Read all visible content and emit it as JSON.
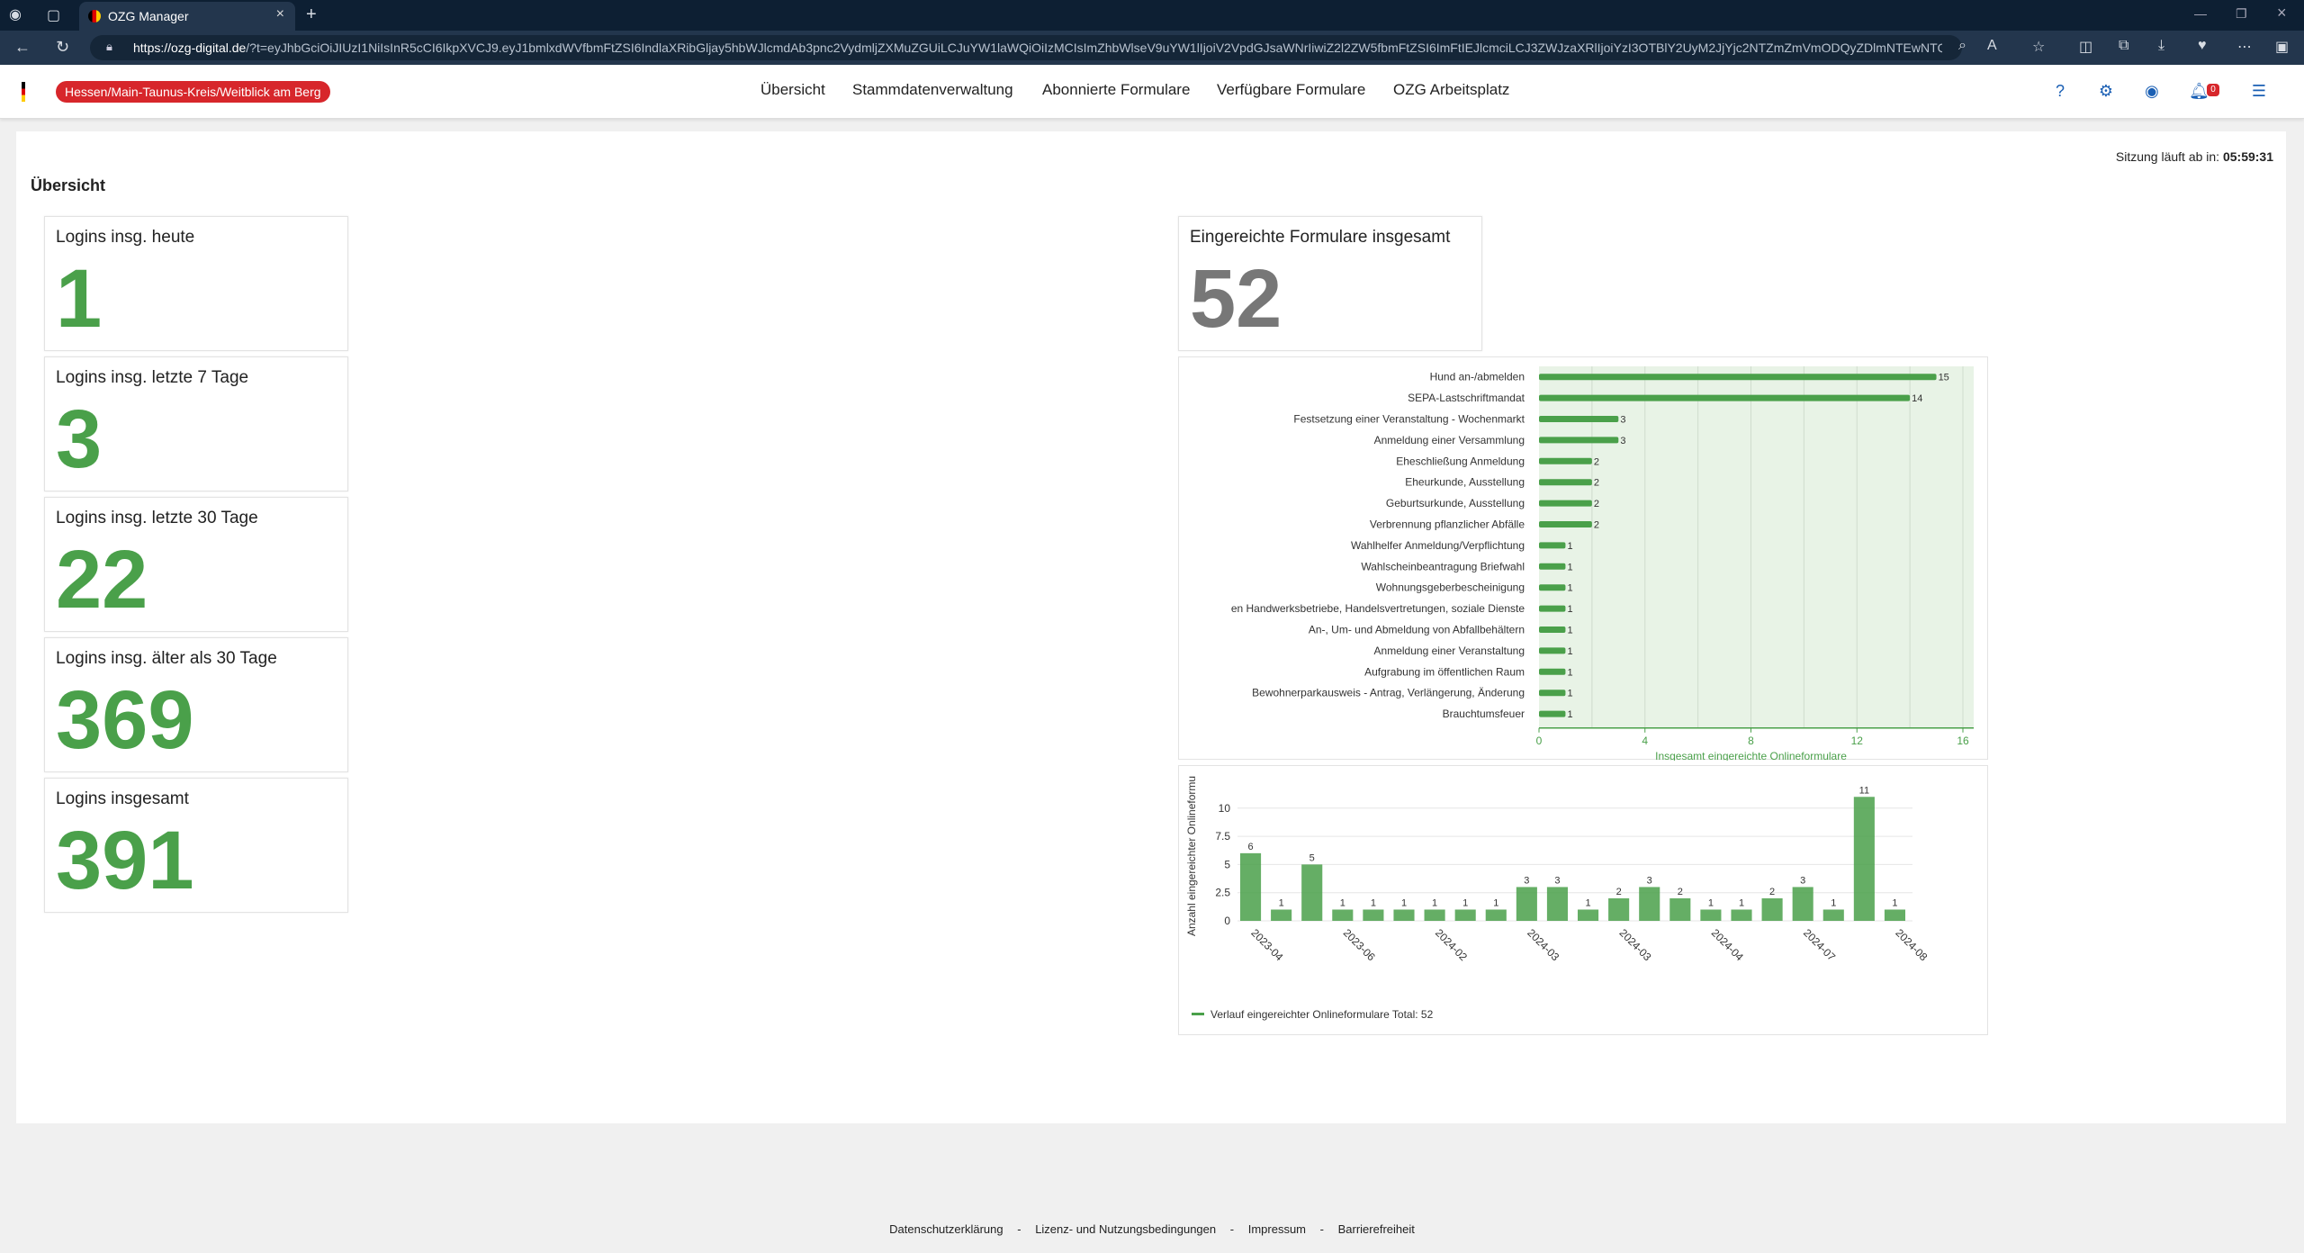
{
  "browser": {
    "tab_title": "OZG Manager",
    "url_domain": "https://ozg-digital.de",
    "url_rest": "/?t=eyJhbGciOiJIUzI1NiIsInR5cCI6IkpXVCJ9.eyJ1bmlxdWVfbmFtZSI6IndlaXRibGljay5hbWJlcmdAb3pnc2VydmljZXMuZGUiLCJuYW1laWQiOiIzMCIsImZhbWlseV9uYW1lIjoiV2VpdGJsaWNrIiwiZ2l2ZW5fbmFtZSI6ImFtIEJlcmciLCJ3ZWJzaXRlIjoiYzI3OTBlY2UyM2JjYjc2NTZmZmVmODQyZDlmNTEwNTQiLCJDb21t..."
  },
  "header": {
    "region": "Hessen/Main-Taunus-Kreis/Weitblick am Berg",
    "nav": [
      "Übersicht",
      "Stammdatenverwaltung",
      "Abonnierte Formulare",
      "Verfügbare Formulare",
      "OZG Arbeitsplatz"
    ],
    "notifications": "0"
  },
  "main": {
    "session_label": "Sitzung läuft ab in:",
    "session_time": "05:59:31",
    "title": "Übersicht",
    "cards": [
      {
        "label": "Logins insg. heute",
        "value": "1"
      },
      {
        "label": "Logins insg. letzte 7 Tage",
        "value": "3"
      },
      {
        "label": "Logins insg. letzte 30 Tage",
        "value": "22"
      },
      {
        "label": "Logins insg. älter als 30 Tage",
        "value": "369"
      },
      {
        "label": "Logins insgesamt",
        "value": "391"
      }
    ],
    "forms_total_label": "Eingereichte Formulare insgesamt",
    "forms_total_value": "52"
  },
  "chart_data": [
    {
      "type": "bar",
      "orientation": "horizontal",
      "categories": [
        "Hund an-/abmelden",
        "SEPA-Lastschriftmandat",
        "Festsetzung einer Veranstaltung - Wochenmarkt",
        "Anmeldung einer Versammlung",
        "Eheschließung Anmeldung",
        "Eheurkunde, Ausstellung",
        "Geburtsurkunde, Ausstellung",
        "Verbrennung pflanzlicher Abfälle",
        "Wahlhelfer Anmeldung/Verpflichtung",
        "Wahlscheinbeantragung Briefwahl",
        "Wohnungsgeberbescheinigung",
        "en Handwerksbetriebe, Handelsvertretungen, soziale Dienste",
        "An-, Um- und Abmeldung von Abfallbehältern",
        "Anmeldung einer Veranstaltung",
        "Aufgrabung im öffentlichen Raum",
        "Bewohnerparkausweis - Antrag, Verlängerung, Änderung",
        "Brauchtumsfeuer"
      ],
      "values": [
        15,
        14,
        3,
        3,
        2,
        2,
        2,
        2,
        1,
        1,
        1,
        1,
        1,
        1,
        1,
        1,
        1
      ],
      "xlabel": "Insgesamt eingereichte Onlineformulare",
      "xlim": [
        0,
        16
      ],
      "xticks": [
        0,
        4,
        8,
        12,
        16
      ],
      "color": "#4aa04a"
    },
    {
      "type": "bar",
      "categories": [
        "2023-04",
        "",
        "",
        "2023-06",
        "",
        "",
        "2024-02",
        "",
        "",
        "2024-03",
        "",
        "",
        "2024-03",
        "",
        "",
        "2024-04",
        "",
        "",
        "2024-07",
        "",
        "",
        "2024-08"
      ],
      "values": [
        6,
        1,
        5,
        1,
        1,
        1,
        1,
        1,
        1,
        3,
        3,
        1,
        2,
        3,
        2,
        1,
        1,
        2,
        3,
        1,
        11,
        1
      ],
      "ylabel": "Anzahl eingereichter Onlineformu",
      "ylim": [
        0,
        11.5
      ],
      "yticks": [
        0,
        2.5,
        5,
        7.5,
        10
      ],
      "legend": "Verlauf eingereichter Onlineformulare",
      "legend_total": "Total: 52",
      "color": "#4aa04a"
    }
  ],
  "footer": [
    "Datenschutzerklärung",
    "Lizenz- und Nutzungsbedingungen",
    "Impressum",
    "Barrierefreiheit"
  ],
  "footer_sep": "-"
}
